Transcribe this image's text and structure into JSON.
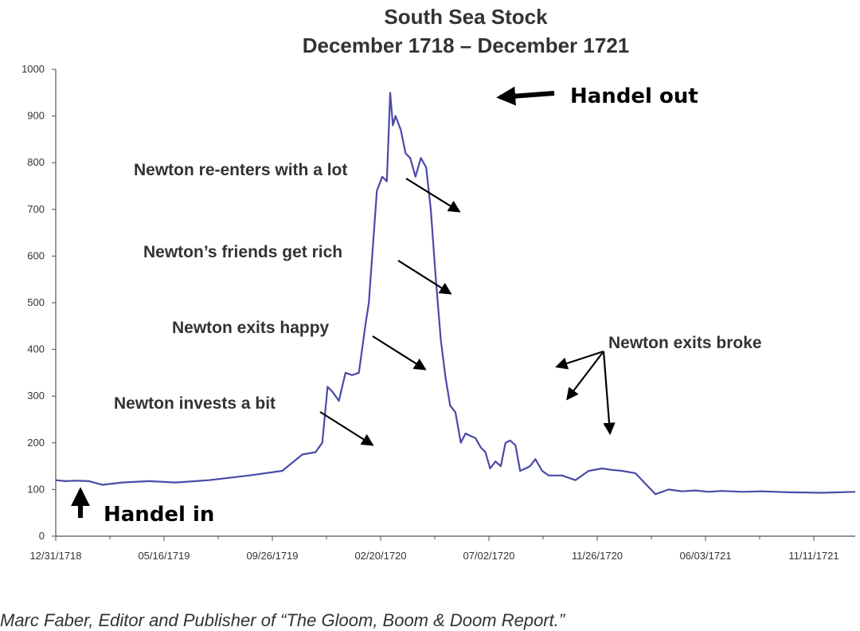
{
  "chart_data": {
    "type": "line",
    "title": "South Sea Stock",
    "subtitle": "December 1718 – December 1721",
    "xlabel": "",
    "ylabel": "",
    "ylim": [
      0,
      1000
    ],
    "yticks": [
      0,
      100,
      200,
      300,
      400,
      500,
      600,
      700,
      800,
      900,
      1000
    ],
    "xticks": [
      "12/31/1718",
      "05/16/1719",
      "09/26/1719",
      "02/20/1720",
      "07/02/1720",
      "11/26/1720",
      "06/03/1721",
      "11/11/1721"
    ],
    "grid": false,
    "line_color": "#4a4aa8",
    "series": [
      {
        "x": [
          0,
          0.15,
          0.3,
          0.5,
          0.7,
          1.0,
          1.4,
          1.8,
          2.3,
          2.9,
          3.4,
          3.7,
          3.9,
          4.0,
          4.08,
          4.15,
          4.25,
          4.35,
          4.45,
          4.55,
          4.65,
          4.7,
          4.75,
          4.82,
          4.9,
          4.97,
          5.02,
          5.06,
          5.1,
          5.18,
          5.25,
          5.32,
          5.4,
          5.48,
          5.56,
          5.63,
          5.7,
          5.78,
          5.85,
          5.92,
          6.0,
          6.08,
          6.15,
          6.22,
          6.3,
          6.38,
          6.45,
          6.52,
          6.6,
          6.68,
          6.75,
          6.82,
          6.9,
          6.97,
          7.05,
          7.12,
          7.2,
          7.3,
          7.4,
          7.6,
          7.8,
          8.0,
          8.2,
          8.35,
          8.5,
          8.7,
          9.0,
          9.2,
          9.4,
          9.6,
          9.8,
          10.0,
          10.3,
          10.6,
          11.0,
          11.5,
          12.0
        ],
        "y": [
          120,
          118,
          119,
          118,
          110,
          115,
          118,
          115,
          120,
          130,
          140,
          175,
          180,
          200,
          320,
          310,
          290,
          350,
          345,
          350,
          455,
          500,
          600,
          740,
          770,
          760,
          950,
          880,
          900,
          870,
          820,
          810,
          770,
          810,
          790,
          700,
          560,
          420,
          340,
          280,
          265,
          200,
          220,
          215,
          210,
          190,
          180,
          145,
          160,
          150,
          200,
          205,
          195,
          140,
          145,
          150,
          165,
          140,
          130,
          130,
          120,
          140,
          145,
          142,
          140,
          135,
          90,
          100,
          96,
          98,
          95,
          97,
          95,
          96,
          94,
          93,
          95
        ]
      }
    ],
    "annotations": [
      {
        "text": "Handel out",
        "style": "large"
      },
      {
        "text": "Newton re-enters with a lot",
        "style": "normal"
      },
      {
        "text": "Newton’s friends get rich",
        "style": "normal"
      },
      {
        "text": "Newton exits happy",
        "style": "normal"
      },
      {
        "text": "Newton exits broke",
        "style": "normal"
      },
      {
        "text": "Newton invests a bit",
        "style": "normal"
      },
      {
        "text": "Handel in",
        "style": "large"
      }
    ]
  },
  "credit": "Marc Faber, Editor and Publisher of “The Gloom, Boom & Doom Report.”"
}
